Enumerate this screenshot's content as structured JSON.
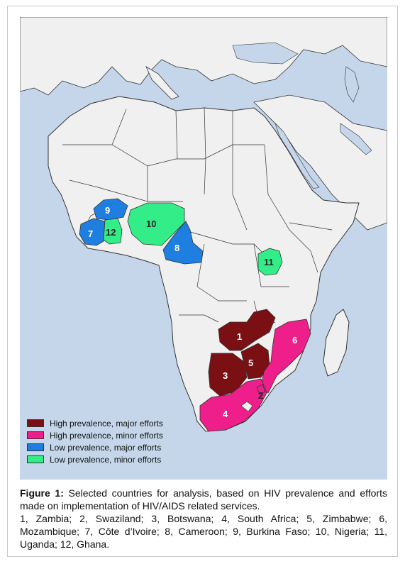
{
  "colors": {
    "sea": "#c5d6ea",
    "land": "#f0f0f0",
    "border": "#333333",
    "high_major": "#7a0f14",
    "high_minor": "#ee1f8a",
    "low_major": "#1f7fe0",
    "low_minor": "#33ee88"
  },
  "legend": [
    {
      "label": "High prevalence, major efforts",
      "color": "#7a0f14"
    },
    {
      "label": "High prevalence, minor efforts",
      "color": "#ee1f8a"
    },
    {
      "label": "Low prevalence, major efforts",
      "color": "#1f7fe0"
    },
    {
      "label": "Low prevalence, minor efforts",
      "color": "#33ee88"
    }
  ],
  "countries": [
    {
      "number": "1",
      "category": "high_major"
    },
    {
      "number": "2",
      "category": "high_minor"
    },
    {
      "number": "3",
      "category": "high_major"
    },
    {
      "number": "4",
      "category": "high_minor"
    },
    {
      "number": "5",
      "category": "high_major"
    },
    {
      "number": "6",
      "category": "high_minor"
    },
    {
      "number": "7",
      "category": "low_major"
    },
    {
      "number": "8",
      "category": "low_major"
    },
    {
      "number": "9",
      "category": "low_major"
    },
    {
      "number": "10",
      "category": "low_minor"
    },
    {
      "number": "11",
      "category": "low_minor"
    },
    {
      "number": "12",
      "category": "low_minor"
    }
  ],
  "caption": {
    "label": "Figure 1:",
    "text": "Selected countries for analysis, based on HIV prevalence and efforts made on implementation of HIV/AIDS related services.",
    "list": "1, Zambia; 2, Swaziland; 3, Botswana; 4, South Africa; 5, Zimbabwe; 6, Mozambique; 7, Côte d’Ivoire; 8, Cameroon; 9, Burkina Faso; 10, Nigeria; 11, Uganda; 12, Ghana."
  }
}
